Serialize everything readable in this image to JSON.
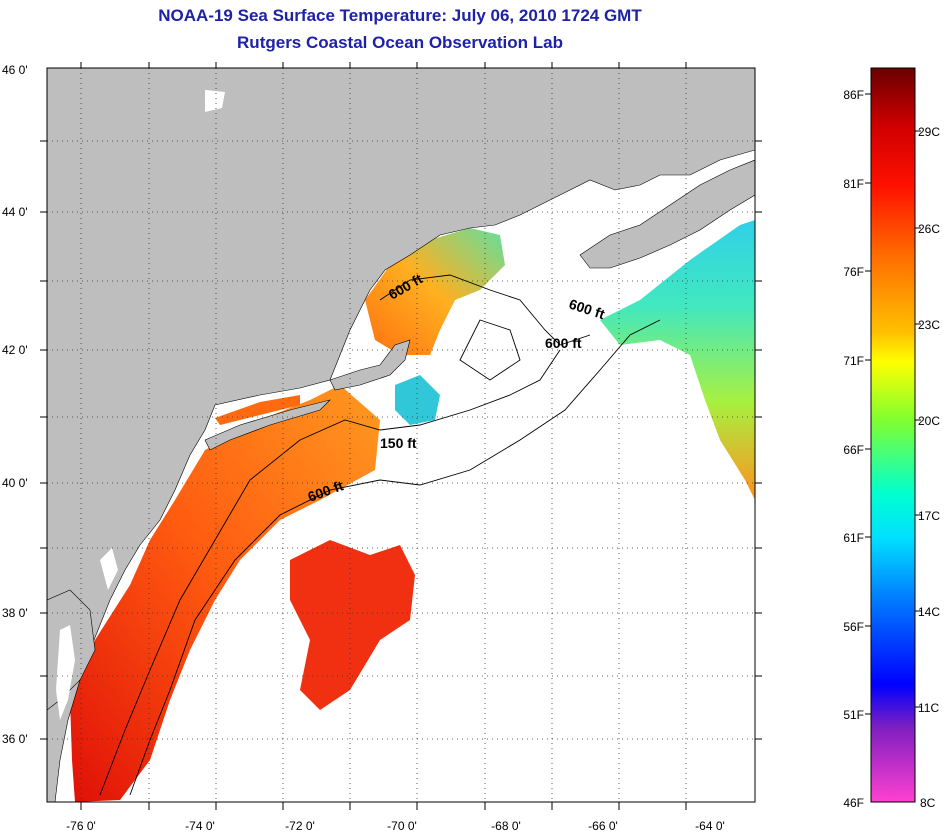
{
  "title": {
    "line1": "NOAA-19 Sea Surface Temperature:  July 06, 2010 1724 GMT",
    "line2": "Rutgers Coastal Ocean Observation Lab"
  },
  "map": {
    "lon_ticks": [
      "-76 0'",
      "-74 0'",
      "-72 0'",
      "-70 0'",
      "-68 0'",
      "-66 0'",
      "-64 0'"
    ],
    "lat_ticks": [
      "46 0'",
      "44 0'",
      "42 0'",
      "40 0'",
      "38 0'",
      "36 0'"
    ],
    "contour_labels": [
      "600 ft",
      "600 ft",
      "600 ft",
      "150 ft",
      "600 ft"
    ],
    "colors": {
      "land": "#bebebe",
      "ocean_nodata": "#ffffff"
    }
  },
  "colorbar": {
    "fahrenheit_labels": [
      "86F",
      "81F",
      "76F",
      "71F",
      "66F",
      "61F",
      "56F",
      "51F",
      "46F"
    ],
    "celsius_labels": [
      "29C",
      "26C",
      "23C",
      "20C",
      "17C",
      "14C",
      "11C",
      "8C"
    ],
    "colors": [
      "#7a0000",
      "#ff0000",
      "#ff8000",
      "#ffff00",
      "#80ff40",
      "#00ffff",
      "#0080ff",
      "#0000ff",
      "#8000c0",
      "#ff40d0"
    ]
  }
}
